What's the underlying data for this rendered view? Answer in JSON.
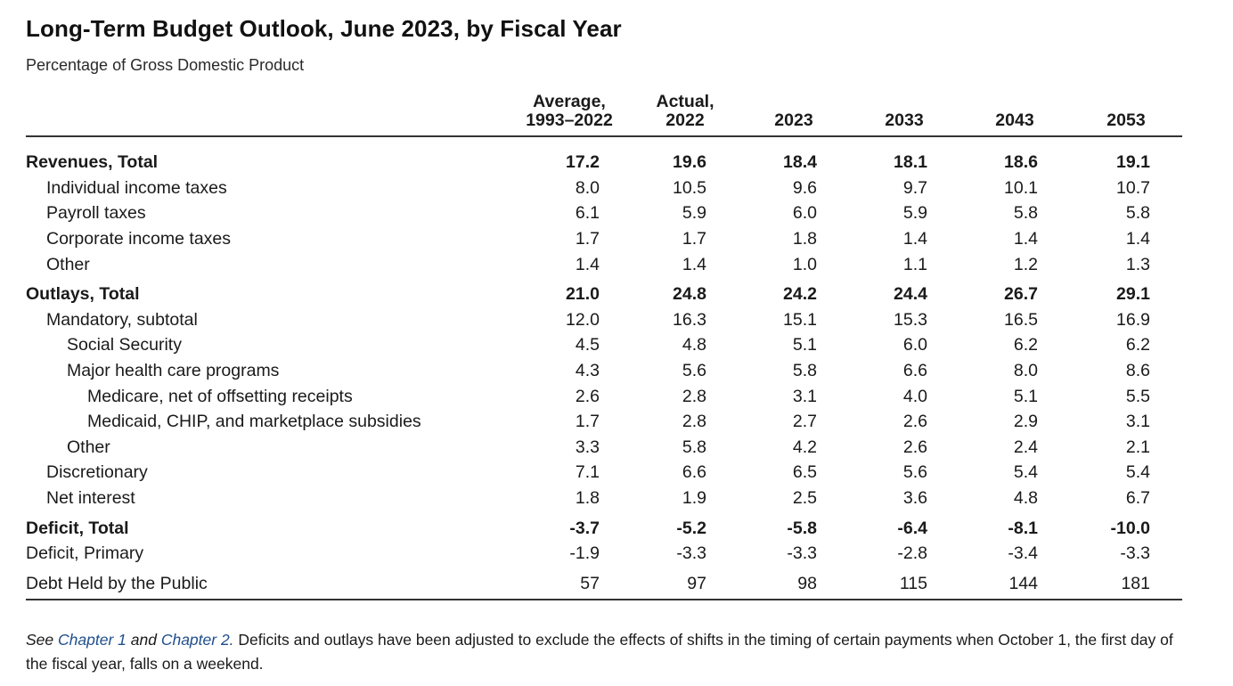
{
  "title": "Long-Term Budget Outlook, June 2023, by Fiscal Year",
  "subtitle": "Percentage of Gross Domestic Product",
  "columns": [
    {
      "line1": "Average,",
      "line2": "1993–2022"
    },
    {
      "line1": "Actual,",
      "line2": "2022"
    },
    {
      "line1": "",
      "line2": "2023"
    },
    {
      "line1": "",
      "line2": "2033"
    },
    {
      "line1": "",
      "line2": "2043"
    },
    {
      "line1": "",
      "line2": "2053"
    }
  ],
  "rows": [
    {
      "label": "Revenues, Total",
      "values": [
        "17.2",
        "19.6",
        "18.4",
        "18.1",
        "18.6",
        "19.1"
      ]
    },
    {
      "label": "Individual income taxes",
      "values": [
        "8.0",
        "10.5",
        "9.6",
        "9.7",
        "10.1",
        "10.7"
      ]
    },
    {
      "label": "Payroll taxes",
      "values": [
        "6.1",
        "5.9",
        "6.0",
        "5.9",
        "5.8",
        "5.8"
      ]
    },
    {
      "label": "Corporate income taxes",
      "values": [
        "1.7",
        "1.7",
        "1.8",
        "1.4",
        "1.4",
        "1.4"
      ]
    },
    {
      "label": "Other",
      "values": [
        "1.4",
        "1.4",
        "1.0",
        "1.1",
        "1.2",
        "1.3"
      ]
    },
    {
      "label": "Outlays, Total",
      "values": [
        "21.0",
        "24.8",
        "24.2",
        "24.4",
        "26.7",
        "29.1"
      ]
    },
    {
      "label": "Mandatory, subtotal",
      "values": [
        "12.0",
        "16.3",
        "15.1",
        "15.3",
        "16.5",
        "16.9"
      ]
    },
    {
      "label": "Social Security",
      "values": [
        "4.5",
        "4.8",
        "5.1",
        "6.0",
        "6.2",
        "6.2"
      ]
    },
    {
      "label": "Major health care programs",
      "values": [
        "4.3",
        "5.6",
        "5.8",
        "6.6",
        "8.0",
        "8.6"
      ]
    },
    {
      "label": "Medicare, net of offsetting receipts",
      "values": [
        "2.6",
        "2.8",
        "3.1",
        "4.0",
        "5.1",
        "5.5"
      ]
    },
    {
      "label": "Medicaid, CHIP, and marketplace subsidies",
      "values": [
        "1.7",
        "2.8",
        "2.7",
        "2.6",
        "2.9",
        "3.1"
      ]
    },
    {
      "label": "Other",
      "values": [
        "3.3",
        "5.8",
        "4.2",
        "2.6",
        "2.4",
        "2.1"
      ]
    },
    {
      "label": "Discretionary",
      "values": [
        "7.1",
        "6.6",
        "6.5",
        "5.6",
        "5.4",
        "5.4"
      ]
    },
    {
      "label": "Net interest",
      "values": [
        "1.8",
        "1.9",
        "2.5",
        "3.6",
        "4.8",
        "6.7"
      ]
    },
    {
      "label": "Deficit, Total",
      "values": [
        "-3.7",
        "-5.2",
        "-5.8",
        "-6.4",
        "-8.1",
        "-10.0"
      ]
    },
    {
      "label": "Deficit, Primary",
      "values": [
        "-1.9",
        "-3.3",
        "-3.3",
        "-2.8",
        "-3.4",
        "-3.3"
      ]
    },
    {
      "label": "Debt Held by the Public",
      "values": [
        "57",
        "97",
        "98",
        "115",
        "144",
        "181"
      ]
    }
  ],
  "note": {
    "see": "See",
    "link1": "Chapter 1",
    "and": "and",
    "link2": "Chapter 2.",
    "text": "Deficits and outlays have been adjusted to exclude the effects of shifts in the timing of certain payments when October 1, the first day of the fiscal year, falls on a weekend."
  }
}
